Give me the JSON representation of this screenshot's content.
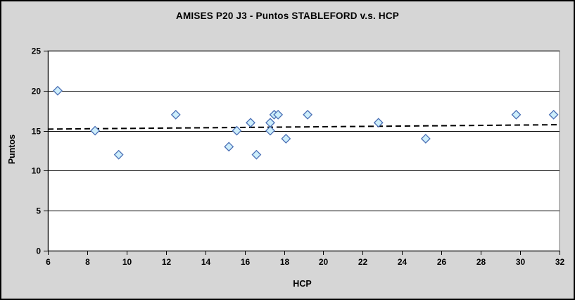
{
  "window": {
    "background_color": "#d6d6d6",
    "frame_border_color": "#000000",
    "plot_background_color": "#ffffff"
  },
  "chart_data": {
    "type": "scatter",
    "title": "AMISES P20 J3 - Puntos STABLEFORD v.s. HCP",
    "xlabel": "HCP",
    "ylabel": "Puntos",
    "xlim": [
      6,
      32
    ],
    "ylim": [
      0,
      25
    ],
    "x_ticks": [
      6,
      8,
      10,
      12,
      14,
      16,
      18,
      20,
      22,
      24,
      26,
      28,
      30,
      32
    ],
    "y_ticks": [
      0,
      5,
      10,
      15,
      20,
      25
    ],
    "gridlines": "horizontal",
    "legend_position": "none",
    "series": [
      {
        "marker": "diamond",
        "marker_fill": "#cdeefb",
        "marker_stroke": "#4a6fb5",
        "points": [
          [
            6.5,
            20
          ],
          [
            8.4,
            15
          ],
          [
            9.6,
            12
          ],
          [
            12.5,
            17
          ],
          [
            15.2,
            13
          ],
          [
            15.6,
            15
          ],
          [
            16.3,
            16
          ],
          [
            16.6,
            12
          ],
          [
            17.3,
            15
          ],
          [
            17.3,
            16
          ],
          [
            17.5,
            17
          ],
          [
            17.7,
            17
          ],
          [
            18.1,
            14
          ],
          [
            19.2,
            17
          ],
          [
            22.8,
            16
          ],
          [
            25.2,
            14
          ],
          [
            29.8,
            17
          ],
          [
            31.7,
            17
          ]
        ]
      }
    ],
    "trendline": {
      "type": "linear",
      "style": "dashed",
      "color": "#000000",
      "start": [
        6,
        15.2
      ],
      "end": [
        32,
        15.75
      ]
    }
  }
}
